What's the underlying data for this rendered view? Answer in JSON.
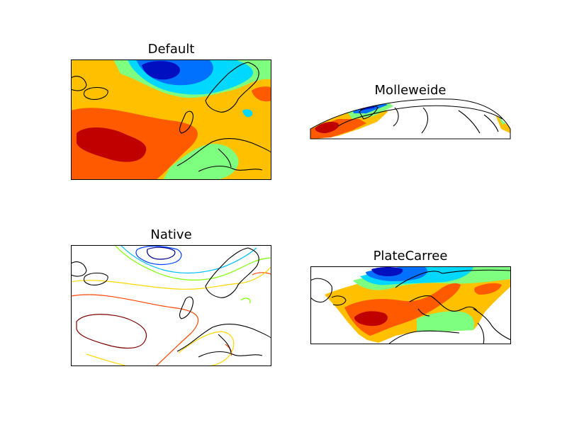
{
  "panels": {
    "default": {
      "title": "Default"
    },
    "molleweide": {
      "title": "Molleweide"
    },
    "native": {
      "title": "Native"
    },
    "platecarree": {
      "title": "PlateCarree"
    }
  },
  "colormap": "jet"
}
